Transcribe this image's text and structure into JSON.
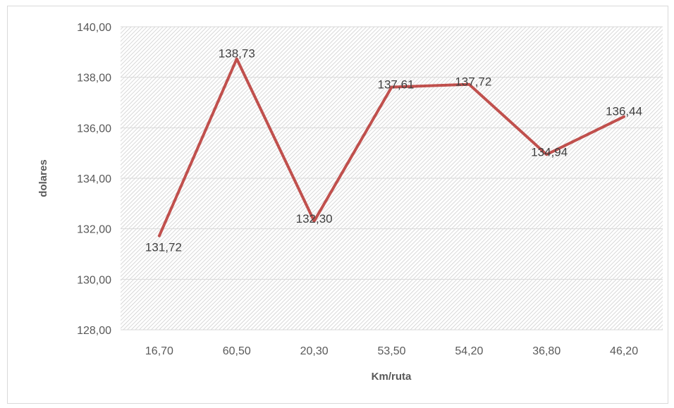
{
  "chart_data": {
    "type": "line",
    "categories": [
      "16,70",
      "60,50",
      "20,30",
      "53,50",
      "54,20",
      "36,80",
      "46,20"
    ],
    "series": [
      {
        "values": [
          131.72,
          138.73,
          132.3,
          137.61,
          137.72,
          134.94,
          136.44
        ]
      }
    ],
    "data_labels": [
      "131,72",
      "138,73",
      "132,30",
      "137,61",
      "137,72",
      "134,94",
      "136,44"
    ],
    "y_ticks": [
      "128,00",
      "130,00",
      "132,00",
      "134,00",
      "136,00",
      "138,00",
      "140,00"
    ],
    "ylim": [
      128,
      140
    ],
    "xlabel": "Km/ruta",
    "ylabel": "dolares",
    "grid": true,
    "plot_fill": "hatched",
    "line_color": "#c0504d"
  }
}
